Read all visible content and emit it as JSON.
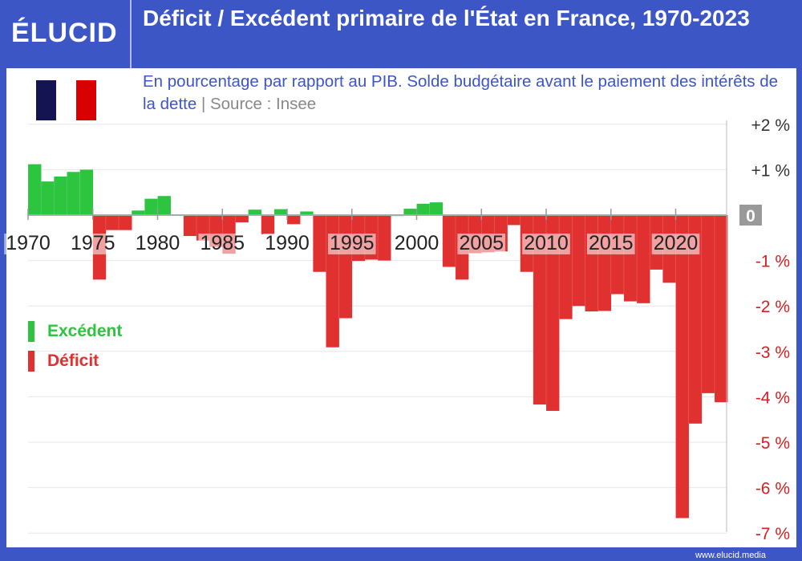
{
  "header": {
    "logo": "ÉLUCID",
    "title": "Déficit / Excédent primaire de l'État en France, 1970-2023"
  },
  "subtitle": {
    "text": "En pourcentage par rapport au PIB. Solde budgétaire avant le paiement des intérêts de la dette",
    "separator": " | ",
    "source": "Source : Insee"
  },
  "legend": [
    {
      "label": "Excédent",
      "color": "#2dc440"
    },
    {
      "label": "Déficit",
      "color": "#e03030"
    }
  ],
  "footer": "www.elucid.media",
  "colors": {
    "brand": "#3d56c6",
    "surplus": "#2dc440",
    "deficit": "#e03030"
  },
  "chart_data": {
    "type": "bar",
    "title": "Déficit / Excédent primaire de l'État en France, 1970-2023",
    "ylim": [
      -7,
      2
    ],
    "y_ticks": [
      {
        "v": 2,
        "label": "+2 %"
      },
      {
        "v": 1,
        "label": "+1 %"
      },
      {
        "v": 0,
        "label": "0"
      },
      {
        "v": -1,
        "label": "-1 %"
      },
      {
        "v": -2,
        "label": "-2 %"
      },
      {
        "v": -3,
        "label": "-3 %"
      },
      {
        "v": -4,
        "label": "-4 %"
      },
      {
        "v": -5,
        "label": "-5 %"
      },
      {
        "v": -6,
        "label": "-6 %"
      },
      {
        "v": -7,
        "label": "-7 %"
      }
    ],
    "x_ticks": [
      "1970",
      "1975",
      "1980",
      "1985",
      "1990",
      "1995",
      "2000",
      "2005",
      "2010",
      "2015",
      "2020"
    ],
    "grid": true,
    "legend_position": "left",
    "categories": [
      1970,
      1971,
      1972,
      1973,
      1974,
      1975,
      1976,
      1977,
      1978,
      1979,
      1980,
      1981,
      1982,
      1983,
      1984,
      1985,
      1986,
      1987,
      1988,
      1989,
      1990,
      1991,
      1992,
      1993,
      1994,
      1995,
      1996,
      1997,
      1998,
      1999,
      2000,
      2001,
      2002,
      2003,
      2004,
      2005,
      2006,
      2007,
      2008,
      2009,
      2010,
      2011,
      2012,
      2013,
      2014,
      2015,
      2016,
      2017,
      2018,
      2019,
      2020,
      2021,
      2022,
      2023
    ],
    "values": [
      1.12,
      0.74,
      0.85,
      0.95,
      1.0,
      -1.42,
      -0.33,
      -0.33,
      0.1,
      0.36,
      0.42,
      -0.01,
      -0.46,
      -0.56,
      -0.7,
      -0.85,
      -0.16,
      0.12,
      -0.42,
      0.13,
      -0.2,
      0.08,
      -1.25,
      -2.91,
      -2.27,
      -1.01,
      -0.98,
      -1.0,
      -0.02,
      0.14,
      0.25,
      0.28,
      -1.14,
      -1.42,
      -0.84,
      -0.82,
      -0.8,
      -0.22,
      -1.25,
      -4.17,
      -4.31,
      -2.29,
      -2.0,
      -2.12,
      -2.11,
      -1.74,
      -1.9,
      -1.94,
      -1.2,
      -1.49,
      -6.67,
      -4.59,
      -3.92,
      -4.12
    ]
  }
}
